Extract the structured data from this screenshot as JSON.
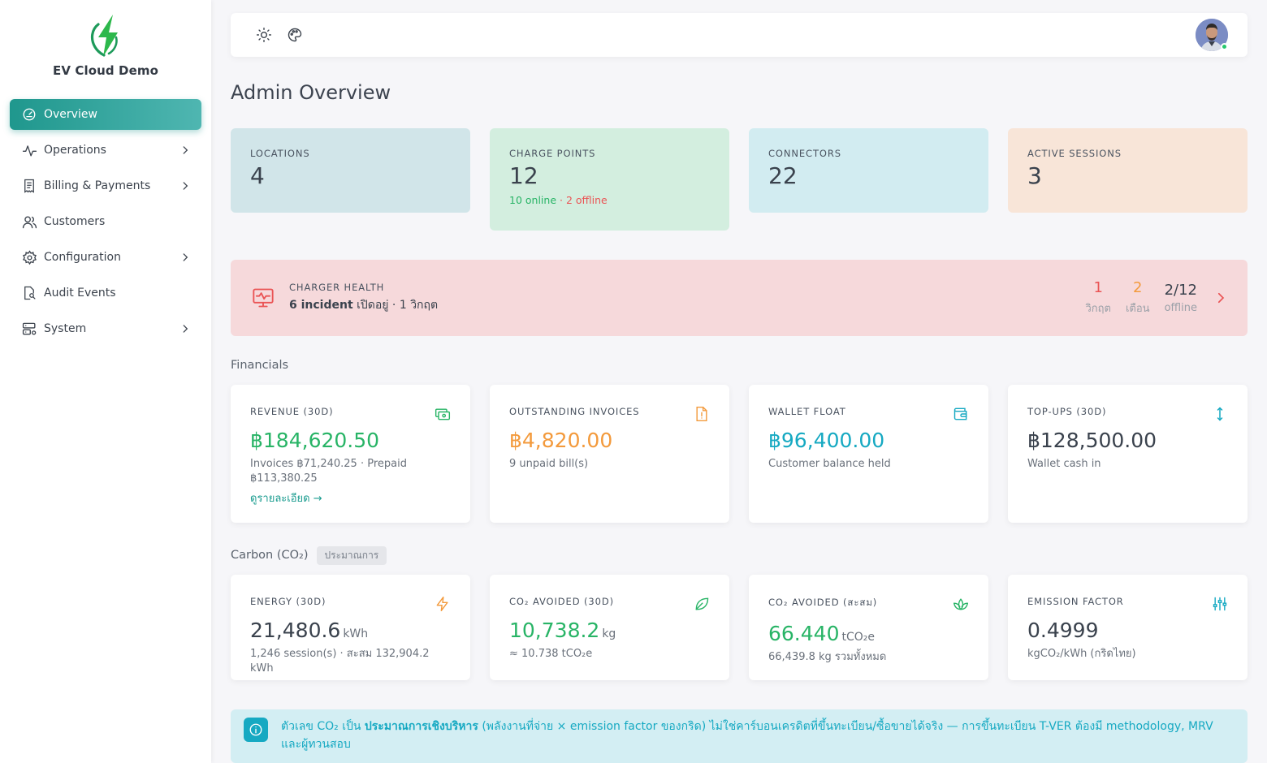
{
  "brand": {
    "name": "EV Cloud Demo",
    "logo_icon": "lightning-logo",
    "accent": "#1f978d"
  },
  "sidebar": {
    "items": [
      {
        "label": "Overview",
        "icon": "gauge-icon",
        "active": true,
        "has_children": false
      },
      {
        "label": "Operations",
        "icon": "activity-icon",
        "has_children": true
      },
      {
        "label": "Billing & Payments",
        "icon": "receipt-icon",
        "has_children": true
      },
      {
        "label": "Customers",
        "icon": "users-icon",
        "has_children": false
      },
      {
        "label": "Configuration",
        "icon": "gear-icon",
        "has_children": true
      },
      {
        "label": "Audit Events",
        "icon": "file-search-icon",
        "has_children": false
      },
      {
        "label": "System",
        "icon": "server-icon",
        "has_children": true
      }
    ]
  },
  "topbar": {
    "icons": [
      "sun-icon",
      "palette-icon"
    ],
    "avatar_status": "online"
  },
  "page": {
    "title": "Admin Overview"
  },
  "stats": {
    "locations": {
      "label": "LOCATIONS",
      "value": "4"
    },
    "charge_points": {
      "label": "CHARGE POINTS",
      "value": "12",
      "online": "10 online",
      "sep": " · ",
      "offline": "2 offline"
    },
    "connectors": {
      "label": "CONNECTORS",
      "value": "22"
    },
    "active_sessions": {
      "label": "ACTIVE SESSIONS",
      "value": "3"
    }
  },
  "health": {
    "label": "CHARGER HEALTH",
    "incidents": "6 incident",
    "detail": " เปิดอยู่ · 1 วิกฤต",
    "critical": {
      "value": "1",
      "label": "วิกฤต"
    },
    "warning": {
      "value": "2",
      "label": "เตือน"
    },
    "offline": {
      "value": "2/12",
      "label": "offline"
    }
  },
  "financials": {
    "title": "Financials",
    "revenue": {
      "label": "REVENUE (30D)",
      "value": "฿184,620.50",
      "sub": "Invoices ฿71,240.25 · Prepaid ฿113,380.25",
      "link": "ดูรายละเอียด →"
    },
    "outstanding": {
      "label": "OUTSTANDING INVOICES",
      "value": "฿4,820.00",
      "sub": "9 unpaid bill(s)"
    },
    "wallet": {
      "label": "WALLET FLOAT",
      "value": "฿96,400.00",
      "sub": "Customer balance held"
    },
    "topups": {
      "label": "TOP-UPS (30D)",
      "value": "฿128,500.00",
      "sub": "Wallet cash in"
    }
  },
  "carbon": {
    "title": "Carbon (CO₂)",
    "badge": "ประมาณการ",
    "energy": {
      "label": "ENERGY (30D)",
      "value": "21,480.6",
      "unit": "kWh",
      "sub": "1,246 session(s) · สะสม 132,904.2 kWh"
    },
    "avoided30": {
      "label": "CO₂ AVOIDED (30D)",
      "value": "10,738.2",
      "unit": "kg",
      "sub": "≈ 10.738 tCO₂e"
    },
    "avoided_total": {
      "label": "CO₂ AVOIDED (สะสม)",
      "value": "66.440",
      "unit": "tCO₂e",
      "sub": "66,439.8 kg รวมทั้งหมด"
    },
    "emission": {
      "label": "EMISSION FACTOR",
      "value": "0.4999",
      "sub": "kgCO₂/kWh (กริดไทย)"
    }
  },
  "info": {
    "pre": "ตัวเลข CO₂ เป็น ",
    "bold": "ประมาณการเชิงบริหาร",
    "post": " (พลังงานที่จ่าย × emission factor ของกริด) ไม่ใช่คาร์บอนเครดิตที่ขึ้นทะเบียน/ซื้อขายได้จริง — การขึ้นทะเบียน T-VER ต้องมี methodology, MRV และผู้ทวนสอบ"
  }
}
